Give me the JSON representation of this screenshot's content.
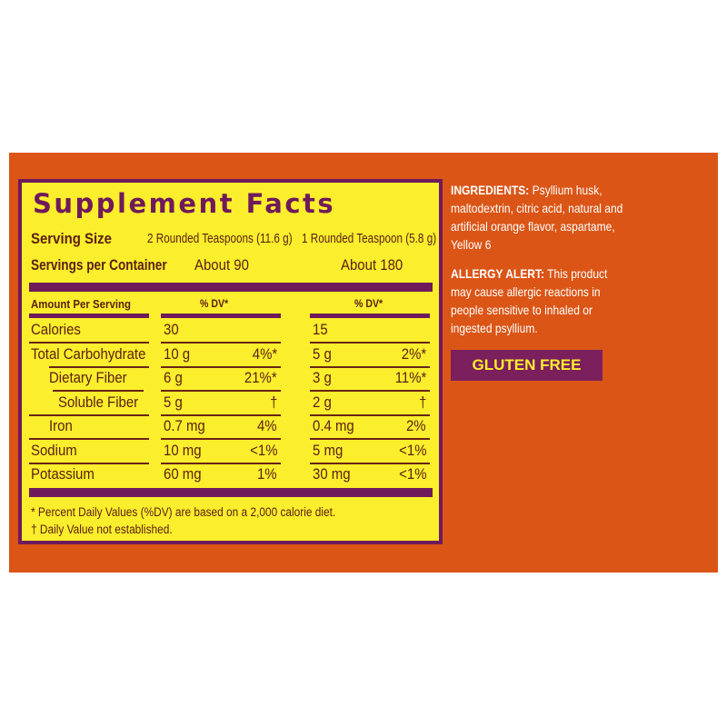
{
  "label": {
    "title": "Supplement Facts",
    "serving_size_label": "Serving Size",
    "serving_size_1": "2 Rounded Teaspoons (11.6 g)",
    "serving_size_2": "1 Rounded Teaspoon (5.8 g)",
    "servings_label": "Servings per Container",
    "servings_1": "About 90",
    "servings_2": "About 180",
    "amount_header": "Amount Per Serving",
    "dv_header_1": "% DV*",
    "dv_header_2": "% DV*",
    "rows": [
      {
        "name": "Calories",
        "a1": "30",
        "d1": "",
        "a2": "15",
        "d2": ""
      },
      {
        "name": "Total Carbohydrate",
        "a1": "10 g",
        "d1": "4%*",
        "a2": "5 g",
        "d2": "2%*"
      },
      {
        "name": "Dietary Fiber",
        "a1": "6 g",
        "d1": "21%*",
        "a2": "3 g",
        "d2": "11%*"
      },
      {
        "name": "Soluble Fiber",
        "a1": "5 g",
        "d1": "†",
        "a2": "2 g",
        "d2": "†"
      },
      {
        "name": "Iron",
        "a1": "0.7 mg",
        "d1": "4%",
        "a2": "0.4 mg",
        "d2": "2%"
      },
      {
        "name": "Sodium",
        "a1": "10 mg",
        "d1": "<1%",
        "a2": "5 mg",
        "d2": "<1%"
      },
      {
        "name": "Potassium",
        "a1": "60 mg",
        "d1": "1%",
        "a2": "30 mg",
        "d2": "<1%"
      }
    ],
    "footnote_1": "* Percent Daily Values (%DV) are based on a 2,000 calorie diet.",
    "footnote_2": "† Daily Value not established."
  },
  "ingredients": {
    "label": "INGREDIENTS:",
    "text": " Psyllium husk, maltodextrin, citric acid, natural and artificial orange flavor, aspartame, Yellow 6"
  },
  "allergy": {
    "label": "ALLERGY ALERT:",
    "text": " This product may cause allergic reactions in people sensitive to inhaled or ingested psyllium."
  },
  "badge": "GLUTEN FREE",
  "colors": {
    "background": "#db5516",
    "label": "#fbee2c",
    "accent": "#6f1a5b",
    "text": "#5c2112"
  }
}
